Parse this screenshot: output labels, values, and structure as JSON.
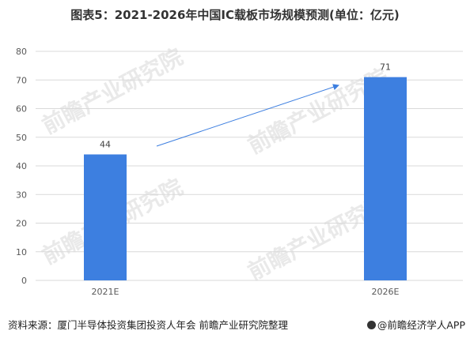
{
  "title": "图表5：2021-2026年中国IC载板市场规模预测(单位：亿元)",
  "chart_data": {
    "type": "bar",
    "title": "图表5：2021-2026年中国IC载板市场规模预测(单位：亿元)",
    "categories": [
      "2021E",
      "2026E"
    ],
    "values": [
      44,
      71
    ],
    "data_labels": [
      "44",
      "71"
    ],
    "ylim": [
      0,
      80
    ],
    "yticks": [
      0,
      10,
      20,
      30,
      40,
      50,
      60,
      70,
      80
    ],
    "grid": true,
    "legend": "none",
    "annotation": "upward arrow from 2021E bar toward 2026E bar",
    "colors": {
      "bar": "#3d7fe0",
      "arrow": "#3d7fe0",
      "grid": "#d9d9d9",
      "axis_text": "#595959"
    }
  },
  "footer": {
    "source": "资料来源：厦门半导体投资集团投资人年会 前瞻产业研究院整理",
    "app": "@前瞻经济学人APP"
  },
  "watermark": {
    "text": "前瞻产业研究院"
  }
}
